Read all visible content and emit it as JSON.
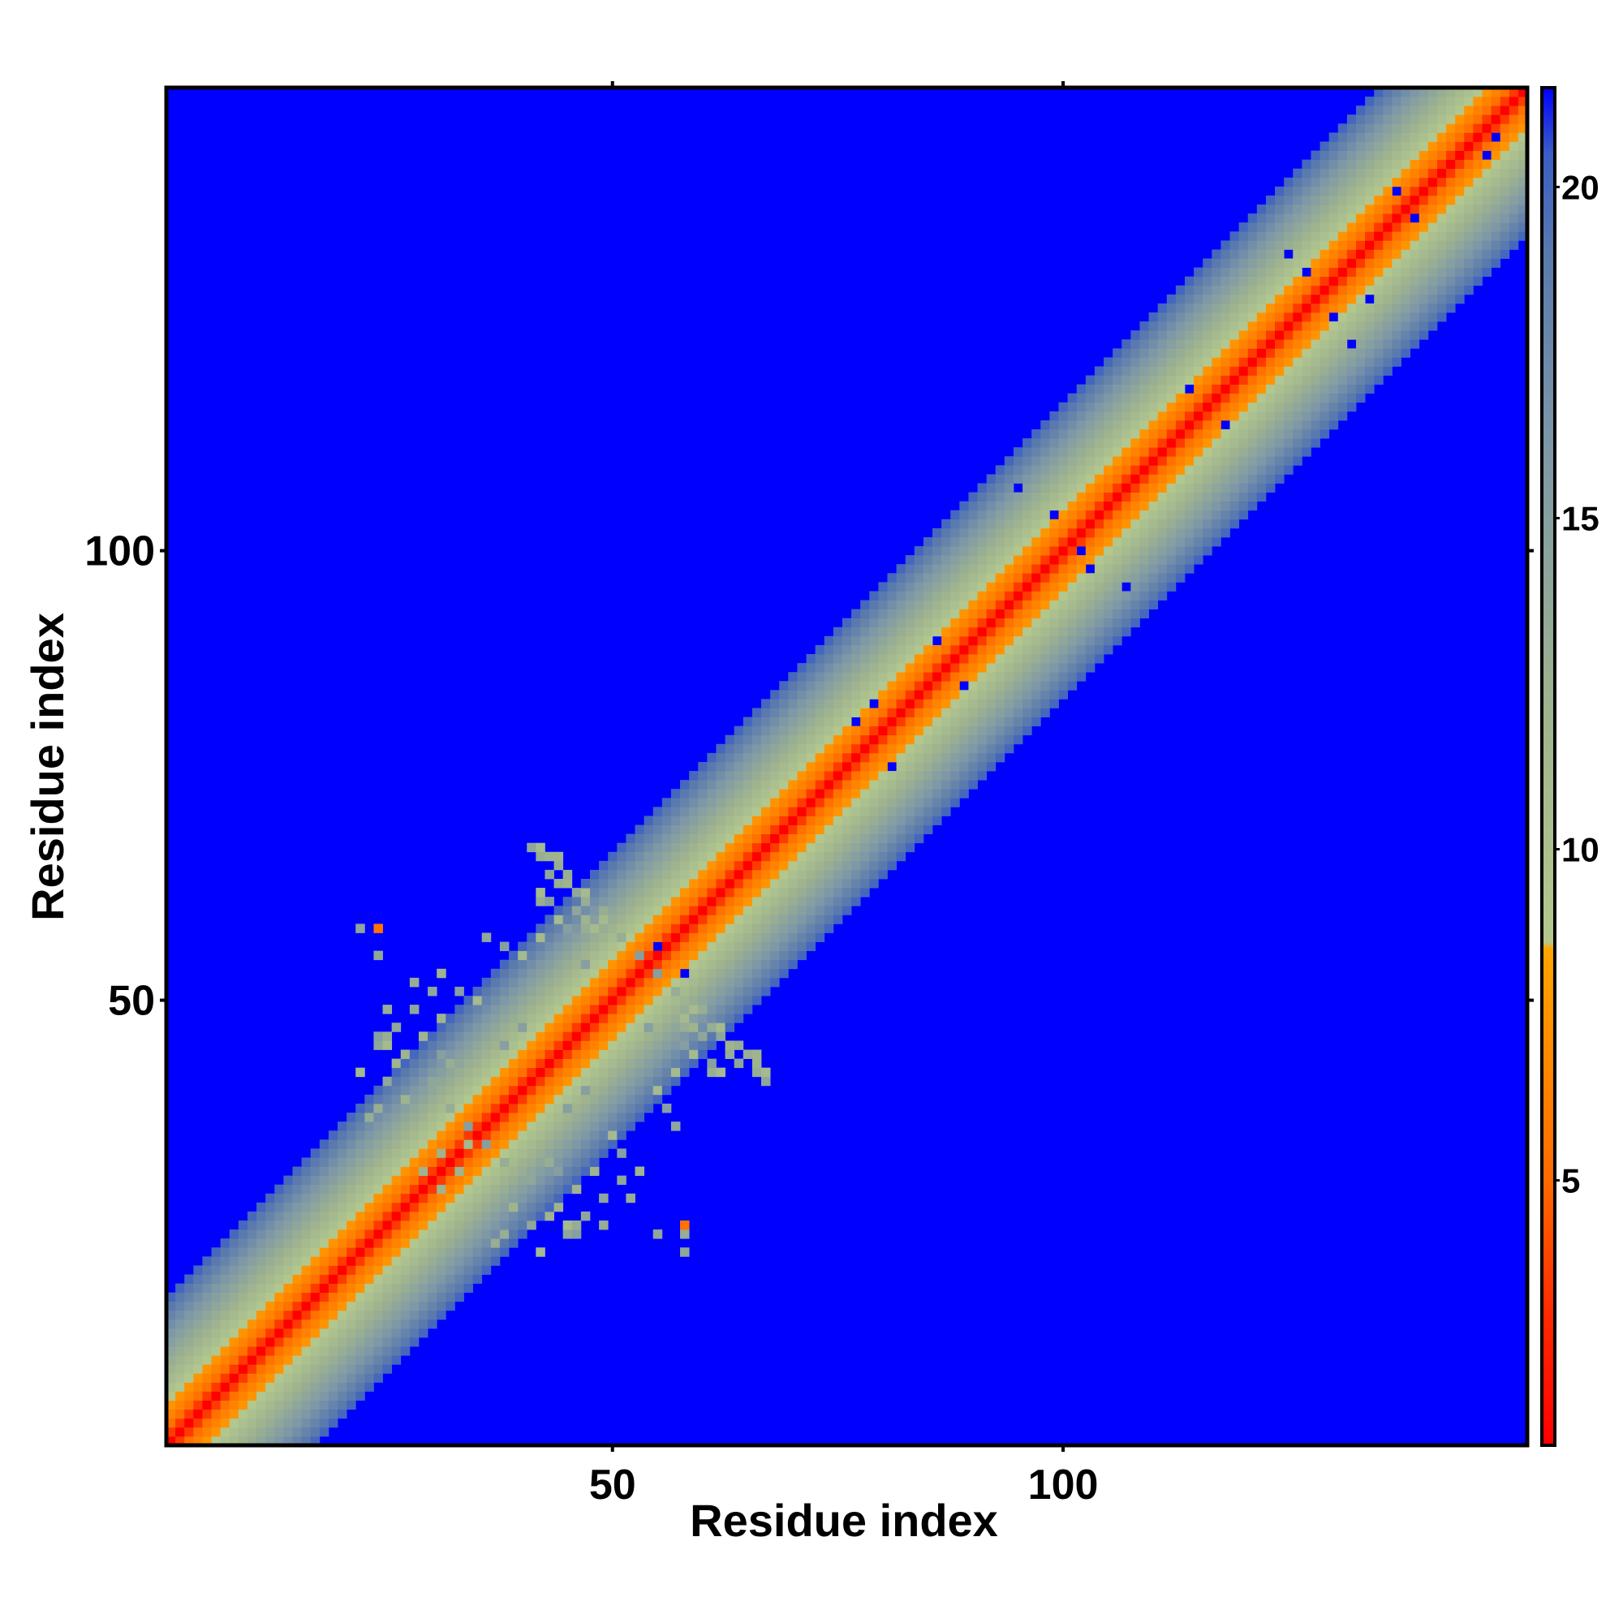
{
  "chart_data": {
    "type": "heatmap",
    "title": "",
    "xlabel": "Residue index",
    "ylabel": "Residue index",
    "n_residues": 151,
    "xlim": [
      1,
      151
    ],
    "ylim": [
      1,
      151
    ],
    "x_ticks": [
      50,
      100
    ],
    "y_ticks": [
      50,
      100
    ],
    "colorbar": {
      "range": [
        1,
        21.5
      ],
      "ticks": [
        5,
        10,
        15,
        20
      ],
      "stops": [
        {
          "value": 1,
          "color": "#ff0000"
        },
        {
          "value": 3,
          "color": "#ff2a00"
        },
        {
          "value": 5,
          "color": "#ff6a00"
        },
        {
          "value": 8.5,
          "color": "#ffa500"
        },
        {
          "value": 8.6,
          "color": "#b4c98e"
        },
        {
          "value": 12,
          "color": "#9fb48e"
        },
        {
          "value": 16,
          "color": "#7f98a6"
        },
        {
          "value": 19,
          "color": "#5a7aae"
        },
        {
          "value": 20.5,
          "color": "#3a5ec4"
        },
        {
          "value": 21.5,
          "color": "#0000ff"
        }
      ]
    },
    "background_value": 21.5,
    "band": {
      "description": "distance increases with |i-j|",
      "values_by_offset": [
        1,
        3.5,
        5.5,
        6.5,
        7.5,
        9,
        10,
        11,
        12,
        13,
        14,
        15,
        16,
        17,
        18,
        19,
        20
      ]
    },
    "contacts": [
      [
        41,
        67
      ],
      [
        42,
        67
      ],
      [
        42,
        66
      ],
      [
        44,
        66
      ],
      [
        43,
        64
      ],
      [
        45,
        64
      ],
      [
        44,
        63
      ],
      [
        42,
        61
      ],
      [
        43,
        61
      ],
      [
        46,
        62
      ],
      [
        47,
        61
      ],
      [
        46,
        60
      ],
      [
        44,
        59
      ],
      [
        47,
        59
      ],
      [
        49,
        59
      ],
      [
        45,
        58
      ],
      [
        48,
        58
      ],
      [
        22,
        58
      ],
      [
        24,
        58
      ],
      [
        24,
        55
      ],
      [
        36,
        57
      ],
      [
        38,
        56
      ],
      [
        40,
        55
      ],
      [
        42,
        57
      ],
      [
        31,
        53
      ],
      [
        28,
        52
      ],
      [
        30,
        51
      ],
      [
        33,
        51
      ],
      [
        35,
        50
      ],
      [
        25,
        49
      ],
      [
        28,
        49
      ],
      [
        31,
        48
      ],
      [
        26,
        47
      ],
      [
        29,
        46
      ],
      [
        24,
        45
      ],
      [
        27,
        44
      ],
      [
        31,
        44
      ],
      [
        26,
        43
      ],
      [
        22,
        42
      ],
      [
        25,
        41
      ],
      [
        30,
        41
      ],
      [
        27,
        39
      ],
      [
        24,
        38
      ],
      [
        23,
        37
      ],
      [
        27,
        36
      ],
      [
        26,
        35
      ],
      [
        34,
        34
      ],
      [
        36,
        34
      ],
      [
        31,
        33
      ],
      [
        29,
        31
      ],
      [
        38,
        32
      ],
      [
        43,
        32
      ],
      [
        45,
        38
      ],
      [
        47,
        40
      ],
      [
        45,
        25
      ],
      [
        46,
        25
      ],
      [
        46,
        24
      ],
      [
        54,
        47
      ],
      [
        56,
        48
      ],
      [
        58,
        47
      ],
      [
        60,
        46
      ],
      [
        62,
        47
      ],
      [
        63,
        45
      ],
      [
        65,
        44
      ],
      [
        66,
        43
      ],
      [
        62,
        42
      ],
      [
        60,
        49
      ],
      [
        57,
        51
      ],
      [
        55,
        53
      ],
      [
        58,
        50
      ]
    ],
    "red_outliers": [
      [
        24,
        58
      ],
      [
        58,
        25
      ]
    ],
    "holes": [
      [
        79,
        83
      ],
      [
        77,
        81
      ],
      [
        81,
        76
      ],
      [
        99,
        104
      ],
      [
        102,
        100
      ],
      [
        103,
        98
      ],
      [
        95,
        107
      ],
      [
        107,
        96
      ],
      [
        130,
        126
      ],
      [
        127,
        131
      ],
      [
        125,
        133
      ],
      [
        134,
        128
      ],
      [
        132,
        123
      ],
      [
        137,
        140
      ],
      [
        139,
        137
      ],
      [
        147,
        144
      ],
      [
        148,
        146
      ],
      [
        58,
        53
      ],
      [
        55,
        56
      ],
      [
        86,
        90
      ],
      [
        89,
        85
      ],
      [
        118,
        114
      ],
      [
        114,
        118
      ]
    ]
  }
}
